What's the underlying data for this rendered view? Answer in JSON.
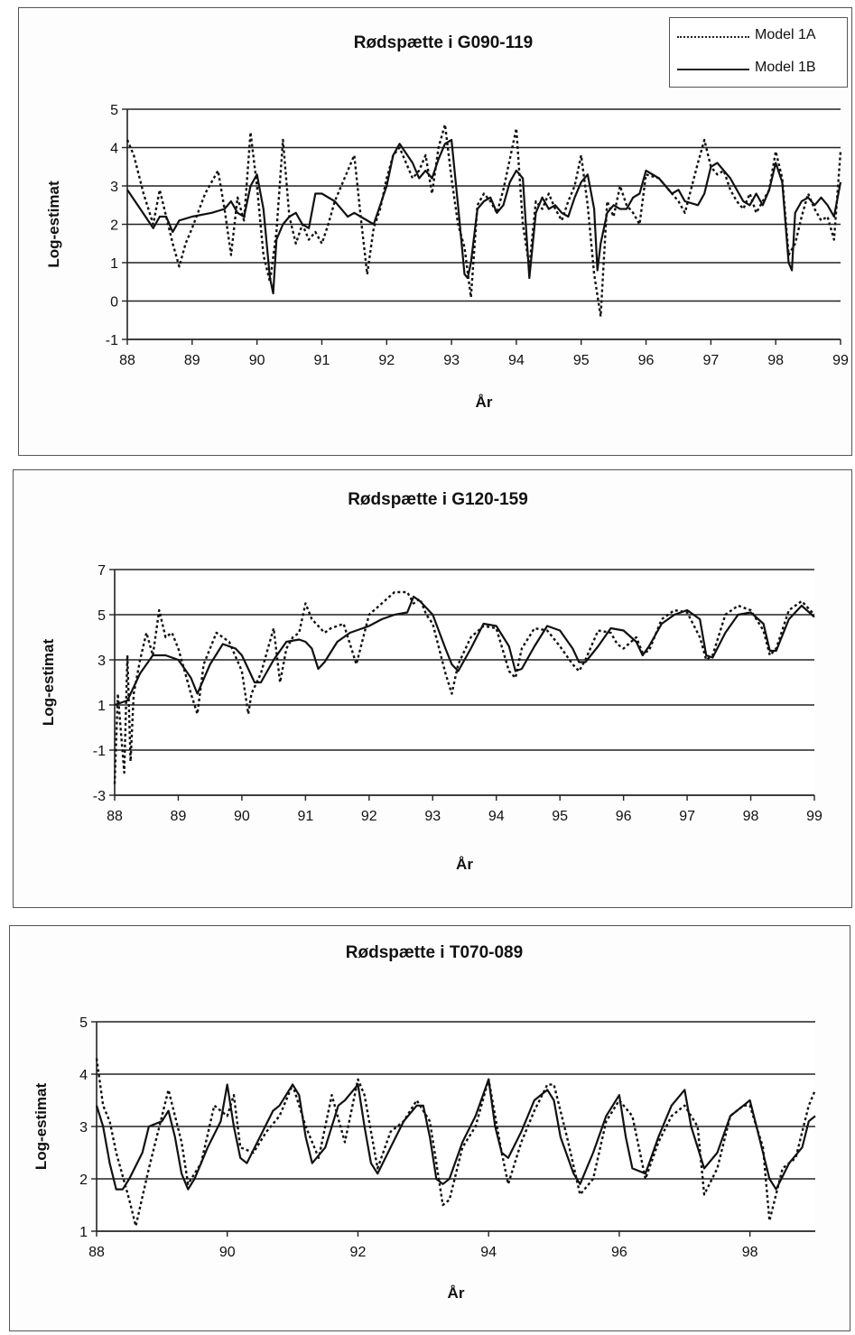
{
  "chart_data": [
    {
      "type": "line",
      "title": "Rødspætte i G090-119",
      "xlabel": "År",
      "ylabel": "Log-estimat",
      "xlim": [
        88,
        99
      ],
      "ylim": [
        -1,
        5
      ],
      "xticks": [
        "88",
        "89",
        "90",
        "91",
        "92",
        "93",
        "94",
        "95",
        "96",
        "97",
        "98",
        "99"
      ],
      "yticks": [
        "-1",
        "0",
        "1",
        "2",
        "3",
        "4",
        "5"
      ],
      "legend": "top-right",
      "series": [
        {
          "name": "Model 1A",
          "style": "dotted",
          "x": [
            88.0,
            88.1,
            88.25,
            88.4,
            88.5,
            88.6,
            88.7,
            88.8,
            88.9,
            89.0,
            89.2,
            89.4,
            89.5,
            89.6,
            89.7,
            89.8,
            89.9,
            90.0,
            90.1,
            90.2,
            90.3,
            90.4,
            90.5,
            90.6,
            90.7,
            90.8,
            90.9,
            91.0,
            91.1,
            91.2,
            91.3,
            91.4,
            91.5,
            91.6,
            91.7,
            91.8,
            91.9,
            92.0,
            92.1,
            92.2,
            92.4,
            92.5,
            92.6,
            92.7,
            92.8,
            92.9,
            93.0,
            93.1,
            93.2,
            93.3,
            93.4,
            93.5,
            93.6,
            93.7,
            93.8,
            93.9,
            94.0,
            94.1,
            94.2,
            94.3,
            94.4,
            94.5,
            94.6,
            94.7,
            94.8,
            94.9,
            95.0,
            95.1,
            95.2,
            95.3,
            95.4,
            95.5,
            95.6,
            95.7,
            95.8,
            95.9,
            96.0,
            96.2,
            96.4,
            96.5,
            96.6,
            96.8,
            96.9,
            97.0,
            97.1,
            97.2,
            97.3,
            97.4,
            97.5,
            97.6,
            97.7,
            97.8,
            97.9,
            98.0,
            98.1,
            98.2,
            98.3,
            98.4,
            98.5,
            98.6,
            98.7,
            98.8,
            98.9,
            99.0
          ],
          "y": [
            4.2,
            3.8,
            2.8,
            2.0,
            2.9,
            2.2,
            1.5,
            0.9,
            1.5,
            1.9,
            2.8,
            3.4,
            2.4,
            1.2,
            2.7,
            2.1,
            4.4,
            3.0,
            1.2,
            0.5,
            1.8,
            4.2,
            2.2,
            1.5,
            2.0,
            1.6,
            1.8,
            1.5,
            2.0,
            2.6,
            3.0,
            3.4,
            3.8,
            2.2,
            0.7,
            1.9,
            2.4,
            3.2,
            3.8,
            4.0,
            3.2,
            3.4,
            3.8,
            2.8,
            4.0,
            4.6,
            3.2,
            2.0,
            1.4,
            0.1,
            2.5,
            2.8,
            2.6,
            2.3,
            2.9,
            3.7,
            4.5,
            2.0,
            0.9,
            2.6,
            2.4,
            2.8,
            2.4,
            2.1,
            2.6,
            3.0,
            3.8,
            2.5,
            0.7,
            -0.4,
            2.6,
            2.2,
            3.0,
            2.5,
            2.3,
            2.0,
            3.3,
            3.2,
            2.8,
            2.6,
            2.3,
            3.6,
            4.2,
            3.5,
            3.3,
            3.4,
            2.9,
            2.6,
            2.4,
            2.8,
            2.3,
            2.6,
            2.9,
            3.9,
            3.2,
            1.2,
            1.5,
            2.2,
            2.8,
            2.4,
            2.1,
            2.2,
            1.6,
            3.9
          ]
        },
        {
          "name": "Model 1B",
          "style": "solid",
          "x": [
            88.0,
            88.2,
            88.4,
            88.5,
            88.6,
            88.7,
            88.8,
            89.0,
            89.3,
            89.5,
            89.6,
            89.7,
            89.8,
            89.9,
            90.0,
            90.1,
            90.2,
            90.25,
            90.3,
            90.4,
            90.5,
            90.6,
            90.7,
            90.8,
            90.9,
            91.0,
            91.2,
            91.4,
            91.5,
            91.6,
            91.8,
            91.9,
            92.0,
            92.1,
            92.2,
            92.4,
            92.5,
            92.6,
            92.7,
            92.8,
            92.9,
            93.0,
            93.1,
            93.2,
            93.25,
            93.3,
            93.4,
            93.5,
            93.6,
            93.7,
            93.8,
            93.9,
            94.0,
            94.1,
            94.2,
            94.3,
            94.4,
            94.5,
            94.6,
            94.7,
            94.8,
            94.9,
            95.0,
            95.1,
            95.2,
            95.25,
            95.3,
            95.4,
            95.5,
            95.6,
            95.7,
            95.8,
            95.9,
            96.0,
            96.2,
            96.4,
            96.5,
            96.6,
            96.8,
            96.9,
            97.0,
            97.1,
            97.3,
            97.4,
            97.5,
            97.6,
            97.7,
            97.8,
            97.9,
            98.0,
            98.1,
            98.2,
            98.25,
            98.3,
            98.4,
            98.5,
            98.6,
            98.7,
            98.8,
            98.9,
            99.0
          ],
          "y": [
            2.9,
            2.4,
            1.9,
            2.2,
            2.2,
            1.8,
            2.1,
            2.2,
            2.3,
            2.4,
            2.6,
            2.3,
            2.2,
            3.0,
            3.3,
            2.4,
            0.6,
            0.2,
            1.6,
            2.0,
            2.2,
            2.3,
            2.0,
            1.9,
            2.8,
            2.8,
            2.6,
            2.2,
            2.3,
            2.2,
            2.0,
            2.5,
            3.0,
            3.8,
            4.1,
            3.6,
            3.2,
            3.4,
            3.2,
            3.7,
            4.1,
            4.2,
            2.5,
            0.7,
            0.6,
            1.0,
            2.4,
            2.6,
            2.7,
            2.3,
            2.5,
            3.1,
            3.4,
            3.2,
            0.6,
            2.3,
            2.7,
            2.4,
            2.5,
            2.3,
            2.2,
            2.7,
            3.1,
            3.3,
            2.4,
            0.8,
            1.5,
            2.3,
            2.5,
            2.4,
            2.4,
            2.7,
            2.8,
            3.4,
            3.2,
            2.8,
            2.9,
            2.6,
            2.5,
            2.8,
            3.5,
            3.6,
            3.2,
            2.9,
            2.6,
            2.5,
            2.8,
            2.5,
            2.9,
            3.6,
            3.1,
            1.0,
            0.8,
            2.3,
            2.6,
            2.7,
            2.5,
            2.7,
            2.5,
            2.2,
            3.1
          ]
        }
      ]
    },
    {
      "type": "line",
      "title": "Rødspætte i G120-159",
      "xlabel": "År",
      "ylabel": "Log-estimat",
      "xlim": [
        88,
        99
      ],
      "ylim": [
        -3,
        7
      ],
      "xticks": [
        "88",
        "89",
        "90",
        "91",
        "92",
        "93",
        "94",
        "95",
        "96",
        "97",
        "98",
        "99"
      ],
      "yticks": [
        "-3",
        "-1",
        "1",
        "3",
        "5",
        "7"
      ],
      "series": [
        {
          "name": "Model 1A",
          "style": "dotted",
          "x": [
            88.0,
            88.05,
            88.15,
            88.2,
            88.25,
            88.3,
            88.4,
            88.5,
            88.6,
            88.7,
            88.8,
            88.9,
            89.0,
            89.2,
            89.3,
            89.4,
            89.6,
            89.8,
            90.0,
            90.1,
            90.15,
            90.3,
            90.5,
            90.6,
            90.7,
            90.8,
            90.9,
            91.0,
            91.1,
            91.2,
            91.3,
            91.4,
            91.6,
            91.8,
            92.0,
            92.2,
            92.4,
            92.6,
            92.7,
            92.8,
            92.9,
            93.0,
            93.2,
            93.3,
            93.4,
            93.6,
            93.8,
            94.0,
            94.2,
            94.3,
            94.4,
            94.6,
            94.8,
            95.0,
            95.2,
            95.3,
            95.4,
            95.6,
            95.8,
            95.9,
            96.0,
            96.2,
            96.3,
            96.4,
            96.6,
            96.8,
            97.0,
            97.2,
            97.3,
            97.4,
            97.6,
            97.8,
            98.0,
            98.2,
            98.3,
            98.4,
            98.6,
            98.8,
            99.0
          ],
          "y": [
            -2.5,
            1.5,
            -2.0,
            3.2,
            -1.5,
            1.5,
            3.0,
            4.2,
            3.2,
            5.2,
            4.0,
            4.2,
            3.5,
            1.5,
            0.6,
            2.8,
            4.2,
            3.8,
            2.5,
            0.6,
            1.5,
            2.4,
            4.4,
            2.0,
            3.5,
            4.0,
            4.2,
            5.5,
            4.8,
            4.5,
            4.2,
            4.4,
            4.6,
            2.8,
            5.0,
            5.5,
            6.0,
            6.0,
            5.5,
            5.7,
            5.0,
            4.6,
            2.4,
            1.5,
            2.8,
            4.0,
            4.5,
            4.4,
            2.5,
            2.2,
            3.5,
            4.4,
            4.3,
            3.6,
            2.8,
            2.5,
            3.0,
            4.3,
            4.2,
            3.7,
            3.5,
            4.0,
            3.3,
            3.4,
            4.8,
            5.2,
            5.1,
            4.0,
            3.0,
            3.2,
            5.0,
            5.4,
            5.2,
            4.3,
            3.2,
            3.5,
            5.2,
            5.6,
            5.0
          ]
        },
        {
          "name": "Model 1B",
          "style": "solid",
          "x": [
            88.0,
            88.2,
            88.4,
            88.6,
            88.8,
            89.0,
            89.2,
            89.3,
            89.5,
            89.7,
            89.9,
            90.0,
            90.2,
            90.3,
            90.5,
            90.7,
            90.9,
            91.0,
            91.1,
            91.2,
            91.3,
            91.5,
            91.7,
            91.9,
            92.0,
            92.2,
            92.4,
            92.6,
            92.7,
            92.8,
            93.0,
            93.2,
            93.3,
            93.4,
            93.6,
            93.8,
            94.0,
            94.2,
            94.3,
            94.4,
            94.6,
            94.8,
            95.0,
            95.2,
            95.3,
            95.4,
            95.6,
            95.8,
            96.0,
            96.2,
            96.3,
            96.4,
            96.6,
            96.8,
            97.0,
            97.2,
            97.3,
            97.4,
            97.6,
            97.8,
            98.0,
            98.2,
            98.3,
            98.4,
            98.6,
            98.8,
            99.0
          ],
          "y": [
            1.0,
            1.2,
            2.4,
            3.2,
            3.2,
            3.0,
            2.2,
            1.5,
            2.8,
            3.7,
            3.5,
            3.2,
            2.0,
            2.0,
            3.0,
            3.8,
            3.9,
            3.8,
            3.5,
            2.6,
            2.9,
            3.8,
            4.2,
            4.4,
            4.5,
            4.8,
            5.0,
            5.1,
            5.8,
            5.6,
            5.0,
            3.5,
            2.8,
            2.5,
            3.5,
            4.6,
            4.5,
            3.6,
            2.5,
            2.6,
            3.6,
            4.5,
            4.3,
            3.5,
            2.9,
            2.9,
            3.6,
            4.4,
            4.3,
            3.8,
            3.2,
            3.6,
            4.6,
            5.0,
            5.2,
            4.8,
            3.2,
            3.1,
            4.2,
            5.0,
            5.1,
            4.6,
            3.4,
            3.4,
            4.8,
            5.4,
            4.9
          ]
        }
      ]
    },
    {
      "type": "line",
      "title": "Rødspætte i T070-089",
      "xlabel": "År",
      "ylabel": "Log-estimat",
      "xlim": [
        88,
        99
      ],
      "ylim": [
        1,
        5
      ],
      "xticks": [
        "88",
        "90",
        "92",
        "94",
        "96",
        "98"
      ],
      "xtick_values": [
        88,
        90,
        92,
        94,
        96,
        98
      ],
      "yticks": [
        "1",
        "2",
        "3",
        "4",
        "5"
      ],
      "series": [
        {
          "name": "Model 1A",
          "style": "dotted",
          "x": [
            88.0,
            88.1,
            88.2,
            88.3,
            88.5,
            88.6,
            88.8,
            89.0,
            89.1,
            89.3,
            89.4,
            89.6,
            89.8,
            90.0,
            90.1,
            90.2,
            90.4,
            90.6,
            90.8,
            91.0,
            91.2,
            91.4,
            91.6,
            91.8,
            92.0,
            92.1,
            92.3,
            92.5,
            92.7,
            92.9,
            93.1,
            93.3,
            93.4,
            93.6,
            93.8,
            94.0,
            94.2,
            94.3,
            94.5,
            94.7,
            94.9,
            95.0,
            95.2,
            95.4,
            95.6,
            95.8,
            96.0,
            96.2,
            96.4,
            96.6,
            96.8,
            97.0,
            97.2,
            97.3,
            97.5,
            97.7,
            97.9,
            98.0,
            98.2,
            98.3,
            98.5,
            98.7,
            98.9,
            99.0
          ],
          "y": [
            4.3,
            3.4,
            3.1,
            2.5,
            1.6,
            1.1,
            2.2,
            3.2,
            3.7,
            2.7,
            1.9,
            2.3,
            3.4,
            3.2,
            3.6,
            2.6,
            2.5,
            2.9,
            3.2,
            3.8,
            3.0,
            2.4,
            3.6,
            2.7,
            3.9,
            3.6,
            2.2,
            2.9,
            3.1,
            3.5,
            3.1,
            1.5,
            1.6,
            2.6,
            3.0,
            3.9,
            2.5,
            1.9,
            2.7,
            3.3,
            3.8,
            3.8,
            2.8,
            1.7,
            2.0,
            3.1,
            3.5,
            3.2,
            2.0,
            2.7,
            3.2,
            3.4,
            3.0,
            1.7,
            2.2,
            3.2,
            3.4,
            3.4,
            2.6,
            1.2,
            2.2,
            2.4,
            3.4,
            3.7
          ]
        },
        {
          "name": "Model 1B",
          "style": "solid",
          "x": [
            88.0,
            88.1,
            88.2,
            88.3,
            88.4,
            88.5,
            88.7,
            88.8,
            89.0,
            89.1,
            89.2,
            89.3,
            89.4,
            89.5,
            89.7,
            89.9,
            90.0,
            90.1,
            90.2,
            90.3,
            90.5,
            90.7,
            90.8,
            91.0,
            91.1,
            91.2,
            91.3,
            91.5,
            91.7,
            91.8,
            92.0,
            92.1,
            92.2,
            92.3,
            92.5,
            92.7,
            92.9,
            93.0,
            93.1,
            93.2,
            93.3,
            93.4,
            93.6,
            93.8,
            94.0,
            94.1,
            94.2,
            94.3,
            94.5,
            94.7,
            94.9,
            95.0,
            95.1,
            95.3,
            95.4,
            95.6,
            95.8,
            96.0,
            96.1,
            96.2,
            96.4,
            96.6,
            96.8,
            97.0,
            97.1,
            97.3,
            97.5,
            97.7,
            97.9,
            98.0,
            98.1,
            98.3,
            98.4,
            98.6,
            98.8,
            98.9,
            99.0
          ],
          "y": [
            3.4,
            3.0,
            2.3,
            1.8,
            1.8,
            2.0,
            2.5,
            3.0,
            3.1,
            3.3,
            2.8,
            2.1,
            1.8,
            2.0,
            2.6,
            3.1,
            3.8,
            3.0,
            2.4,
            2.3,
            2.8,
            3.3,
            3.4,
            3.8,
            3.6,
            2.8,
            2.3,
            2.6,
            3.4,
            3.5,
            3.8,
            3.0,
            2.3,
            2.1,
            2.6,
            3.1,
            3.4,
            3.4,
            2.8,
            2.0,
            1.9,
            2.0,
            2.7,
            3.2,
            3.9,
            3.0,
            2.5,
            2.4,
            2.9,
            3.5,
            3.7,
            3.5,
            2.8,
            2.1,
            1.9,
            2.5,
            3.2,
            3.6,
            2.8,
            2.2,
            2.1,
            2.8,
            3.4,
            3.7,
            3.0,
            2.2,
            2.5,
            3.2,
            3.4,
            3.5,
            3.0,
            2.0,
            1.8,
            2.3,
            2.6,
            3.1,
            3.2
          ]
        }
      ]
    }
  ]
}
